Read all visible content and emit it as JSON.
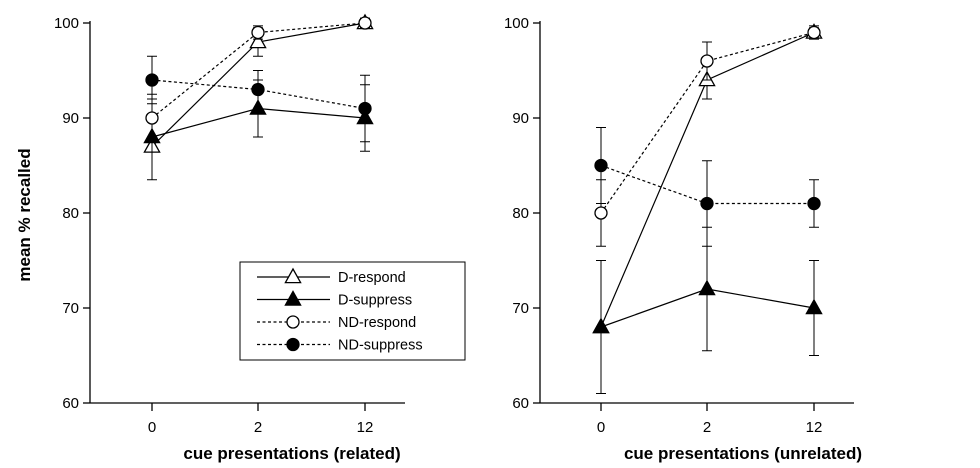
{
  "chart_data": [
    {
      "type": "line",
      "title": "",
      "xlabel": "cue presentations (related)",
      "ylabel": "mean % recalled",
      "categories": [
        "0",
        "2",
        "12"
      ],
      "ylim": [
        60,
        100
      ],
      "yticks": [
        60,
        70,
        80,
        90,
        100
      ],
      "legend": "bottom-right",
      "series": [
        {
          "name": "D-respond",
          "marker": "triangle-open",
          "line": "solid",
          "values": [
            87,
            98,
            100
          ],
          "error": [
            0,
            1.5,
            0.5
          ]
        },
        {
          "name": "D-suppress",
          "marker": "triangle-filled",
          "line": "solid",
          "values": [
            88,
            91,
            90
          ],
          "error": [
            4.5,
            3,
            3.5
          ]
        },
        {
          "name": "ND-respond",
          "marker": "circle-open",
          "line": "dashed",
          "values": [
            90,
            99,
            100
          ],
          "error": [
            2,
            0.7,
            0.5
          ]
        },
        {
          "name": "ND-suppress",
          "marker": "circle-filled",
          "line": "dashed",
          "values": [
            94,
            93,
            91
          ],
          "error": [
            2.5,
            2,
            3.5
          ]
        }
      ]
    },
    {
      "type": "line",
      "title": "",
      "xlabel": "cue presentations (unrelated)",
      "ylabel": "",
      "categories": [
        "0",
        "2",
        "12"
      ],
      "ylim": [
        60,
        100
      ],
      "yticks": [
        60,
        70,
        80,
        90,
        100
      ],
      "legend": "none",
      "series": [
        {
          "name": "D-respond",
          "marker": "triangle-open",
          "line": "solid",
          "values": [
            68,
            94,
            99
          ],
          "error": [
            0,
            2,
            0.5
          ]
        },
        {
          "name": "D-suppress",
          "marker": "triangle-filled",
          "line": "solid",
          "values": [
            68,
            72,
            70
          ],
          "error": [
            7,
            6.5,
            5
          ]
        },
        {
          "name": "ND-respond",
          "marker": "circle-open",
          "line": "dashed",
          "values": [
            80,
            96,
            99
          ],
          "error": [
            3.5,
            2,
            0.7
          ]
        },
        {
          "name": "ND-suppress",
          "marker": "circle-filled",
          "line": "dashed",
          "values": [
            85,
            81,
            81
          ],
          "error": [
            4,
            4.5,
            2.5
          ]
        }
      ]
    }
  ]
}
